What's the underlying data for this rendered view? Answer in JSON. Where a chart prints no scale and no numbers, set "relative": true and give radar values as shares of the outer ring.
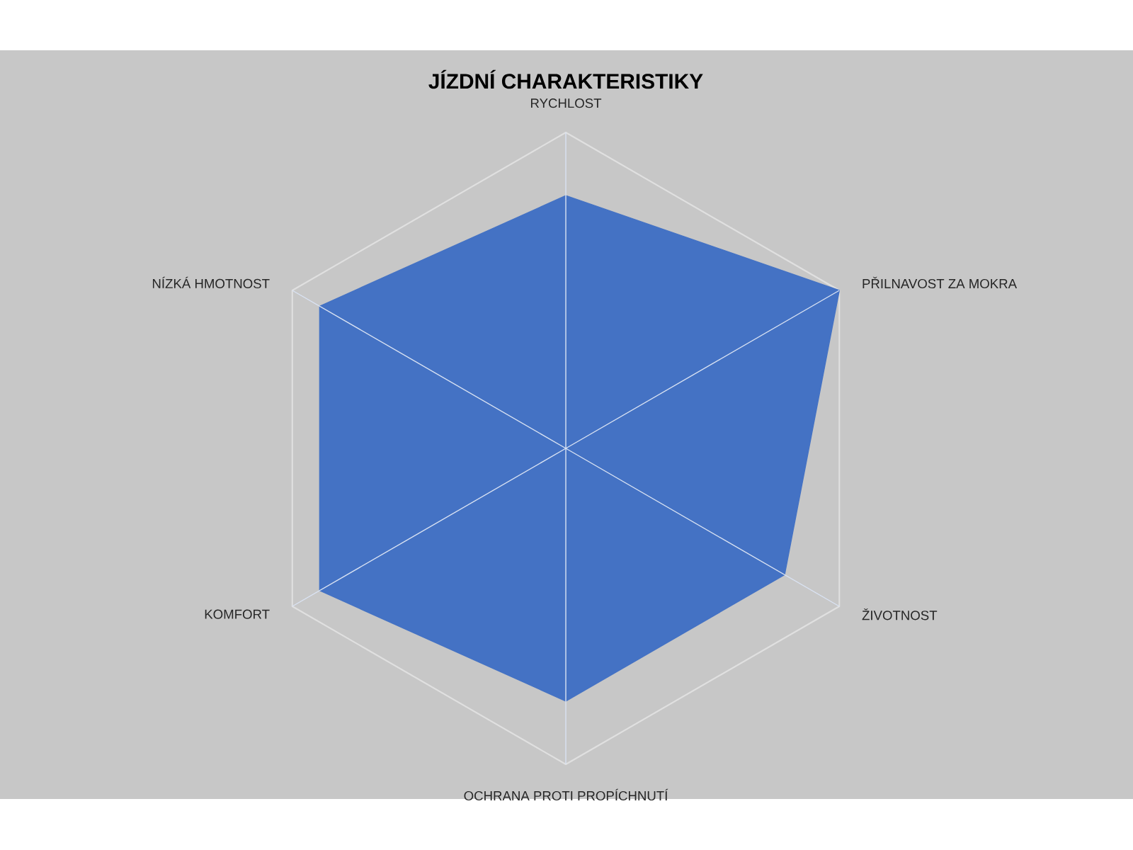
{
  "chart_data": {
    "type": "radar",
    "title": "JÍZDNÍ CHARAKTERISTIKY",
    "categories": [
      "RYCHLOST",
      "PŘILNAVOST ZA MOKRA",
      "ŽIVOTNOST",
      "OCHRANA PROTI PROPÍCHNUTÍ",
      "KOMFORT",
      "NÍZKÁ HMOTNOST"
    ],
    "relative": true,
    "grid": true,
    "series": [
      {
        "color": "#4472c4",
        "values": [
          0.8,
          1.0,
          0.8,
          0.8,
          0.9,
          0.9
        ]
      }
    ]
  }
}
